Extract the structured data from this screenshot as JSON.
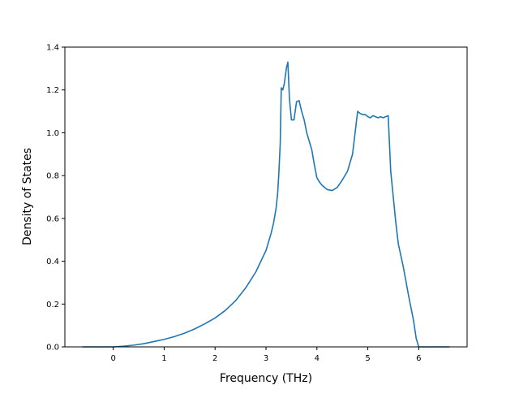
{
  "chart_data": {
    "type": "line",
    "title": "",
    "xlabel": "Frequency (THz)",
    "ylabel": "Density of States",
    "xlim": [
      -0.95,
      6.95
    ],
    "ylim": [
      0,
      1.4
    ],
    "xticks": [
      0,
      1,
      2,
      3,
      4,
      5,
      6
    ],
    "yticks": [
      0.0,
      0.2,
      0.4,
      0.6,
      0.8,
      1.0,
      1.2,
      1.4
    ],
    "xtick_labels": [
      "0",
      "1",
      "2",
      "3",
      "4",
      "5",
      "6"
    ],
    "ytick_labels": [
      "0.0",
      "0.2",
      "0.4",
      "0.6",
      "0.8",
      "1.0",
      "1.2",
      "1.4"
    ],
    "grid": false,
    "legend": "none",
    "line_color": "#1f77b4",
    "series": [
      {
        "x": [
          -0.6,
          0.0,
          0.2,
          0.4,
          0.6,
          0.8,
          1.0,
          1.2,
          1.4,
          1.6,
          1.8,
          2.0,
          2.2,
          2.4,
          2.6,
          2.8,
          3.0,
          3.1,
          3.15,
          3.2,
          3.23,
          3.25,
          3.28,
          3.3,
          3.33,
          3.36,
          3.4,
          3.43,
          3.46,
          3.5,
          3.55,
          3.6,
          3.65,
          3.7,
          3.75,
          3.8,
          3.9,
          3.95,
          4.0,
          4.05,
          4.1,
          4.2,
          4.3,
          4.4,
          4.5,
          4.6,
          4.7,
          4.75,
          4.8,
          4.85,
          4.9,
          4.95,
          5.0,
          5.05,
          5.1,
          5.15,
          5.2,
          5.25,
          5.3,
          5.35,
          5.4,
          5.45,
          5.5,
          5.55,
          5.6,
          5.7,
          5.8,
          5.9,
          5.95,
          6.0,
          6.05,
          6.3,
          6.6
        ],
        "y": [
          0.0,
          0.0,
          0.003,
          0.008,
          0.015,
          0.025,
          0.035,
          0.048,
          0.064,
          0.084,
          0.108,
          0.135,
          0.17,
          0.215,
          0.275,
          0.35,
          0.45,
          0.53,
          0.58,
          0.65,
          0.72,
          0.8,
          0.95,
          1.21,
          1.2,
          1.23,
          1.3,
          1.33,
          1.16,
          1.06,
          1.06,
          1.145,
          1.15,
          1.1,
          1.06,
          1.0,
          0.92,
          0.85,
          0.79,
          0.77,
          0.755,
          0.735,
          0.73,
          0.745,
          0.78,
          0.82,
          0.9,
          1.0,
          1.1,
          1.09,
          1.085,
          1.085,
          1.075,
          1.07,
          1.08,
          1.075,
          1.07,
          1.075,
          1.07,
          1.075,
          1.08,
          0.82,
          0.7,
          0.58,
          0.48,
          0.37,
          0.24,
          0.12,
          0.04,
          0.0,
          0.0,
          0.0,
          0.0
        ]
      }
    ]
  }
}
